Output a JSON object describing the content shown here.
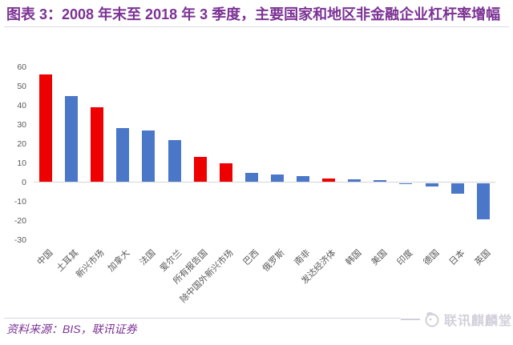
{
  "header": {
    "title": "图表 3：2008 年末至 2018 年 3 季度，主要国家和地区非金融企业杠杆率增幅",
    "title_color": "#7b3294"
  },
  "chart_data": {
    "type": "bar",
    "title": "2008 年末至 2018 年 3 季度，主要国家和地区非金融企业杠杆率增幅",
    "categories": [
      "中国",
      "土耳其",
      "新兴市场",
      "加拿大",
      "法国",
      "爱尔兰",
      "所有报告国",
      "除中国外新兴市场",
      "巴西",
      "俄罗斯",
      "南非",
      "发达经济体",
      "韩国",
      "美国",
      "印度",
      "德国",
      "日本",
      "英国"
    ],
    "values": [
      56,
      45,
      39,
      28,
      27,
      22,
      13,
      10,
      5,
      4,
      3,
      2,
      1.5,
      1.2,
      -0.3,
      -2,
      -5.5,
      -19
    ],
    "bar_color_keys": [
      "red",
      "blue",
      "red",
      "blue",
      "blue",
      "blue",
      "red",
      "red",
      "blue",
      "blue",
      "blue",
      "red",
      "blue",
      "blue",
      "blue",
      "blue",
      "blue",
      "blue"
    ],
    "colors": {
      "red": "#ee0000",
      "blue": "#4a77c8"
    },
    "axis_label_color": "#595959",
    "yticks": [
      60,
      50,
      40,
      30,
      20,
      10,
      0,
      -10,
      -20,
      -30
    ],
    "ylim": [
      -30,
      60
    ],
    "xlabel": "",
    "ylabel": "",
    "grid": false,
    "legend": "none"
  },
  "footer": {
    "source": "资料来源：BIS，联讯证券",
    "watermark": "联讯麒麟堂",
    "watermark_icon": "qilin-logo-icon",
    "watermark_color": "#d2cfda"
  }
}
